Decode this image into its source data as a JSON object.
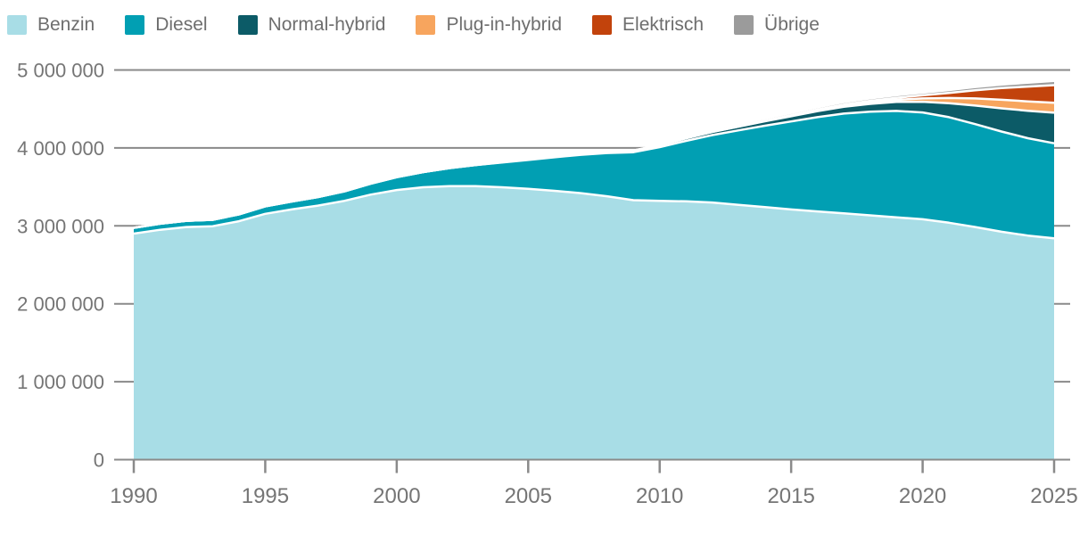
{
  "chart_data": {
    "type": "area",
    "stacked": true,
    "title": "",
    "xlabel": "",
    "ylabel": "",
    "grid": "horizontal",
    "legend_position": "top-left",
    "ylim": [
      0,
      5000000
    ],
    "x_range": [
      1990,
      2025
    ],
    "x": [
      1990,
      1991,
      1992,
      1993,
      1994,
      1995,
      1996,
      1997,
      1998,
      1999,
      2000,
      2001,
      2002,
      2003,
      2004,
      2005,
      2006,
      2007,
      2008,
      2009,
      2010,
      2011,
      2012,
      2013,
      2014,
      2015,
      2016,
      2017,
      2018,
      2019,
      2020,
      2021,
      2022,
      2023,
      2024,
      2025
    ],
    "xticks": [
      1990,
      1995,
      2000,
      2005,
      2010,
      2015,
      2020,
      2025
    ],
    "yticks": {
      "values": [
        0,
        1000000,
        2000000,
        3000000,
        4000000,
        5000000
      ],
      "labels": [
        "0",
        "1 000 000",
        "2 000 000",
        "3 000 000",
        "4 000 000",
        "5 000 000"
      ]
    },
    "series": [
      {
        "id": "benzin",
        "name": "Benzin",
        "color": "#a8dde6",
        "values": [
          2900000,
          2950000,
          2985000,
          2995000,
          3060000,
          3155000,
          3210000,
          3260000,
          3320000,
          3400000,
          3460000,
          3495000,
          3510000,
          3510000,
          3495000,
          3475000,
          3450000,
          3420000,
          3380000,
          3330000,
          3320000,
          3315000,
          3300000,
          3270000,
          3240000,
          3210000,
          3185000,
          3160000,
          3135000,
          3110000,
          3085000,
          3040000,
          2985000,
          2925000,
          2875000,
          2840000
        ]
      },
      {
        "id": "diesel",
        "name": "Diesel",
        "color": "#019fb3",
        "values": [
          75000,
          78000,
          80000,
          83000,
          88000,
          95000,
          102000,
          110000,
          122000,
          140000,
          165000,
          195000,
          230000,
          270000,
          318000,
          370000,
          430000,
          492000,
          555000,
          615000,
          690000,
          775000,
          865000,
          955000,
          1045000,
          1130000,
          1210000,
          1280000,
          1330000,
          1365000,
          1370000,
          1355000,
          1320000,
          1285000,
          1250000,
          1220000
        ]
      },
      {
        "id": "normal-hybrid",
        "name": "Normal-hybrid",
        "color": "#0c5b67",
        "values": [
          0,
          0,
          0,
          0,
          0,
          0,
          0,
          0,
          0,
          0,
          0,
          0,
          1000,
          2000,
          4000,
          6000,
          8000,
          12000,
          16000,
          21000,
          27000,
          33000,
          40000,
          48000,
          57000,
          66000,
          76000,
          87000,
          100000,
          115000,
          138000,
          178000,
          238000,
          298000,
          352000,
          392000
        ]
      },
      {
        "id": "plug-in-hybrid",
        "name": "Plug-in-hybrid",
        "color": "#f7a55e",
        "values": [
          0,
          0,
          0,
          0,
          0,
          0,
          0,
          0,
          0,
          0,
          0,
          0,
          0,
          0,
          0,
          0,
          0,
          0,
          0,
          0,
          0,
          0,
          1000,
          2000,
          4000,
          7000,
          11000,
          15000,
          20000,
          27000,
          42000,
          68000,
          92000,
          110000,
          120000,
          128000
        ]
      },
      {
        "id": "elektrisch",
        "name": "Elektrisch",
        "color": "#c2430c",
        "values": [
          0,
          0,
          0,
          0,
          0,
          0,
          0,
          0,
          0,
          0,
          0,
          0,
          0,
          0,
          0,
          0,
          0,
          0,
          0,
          0,
          0,
          0,
          2000,
          3000,
          5000,
          7000,
          10000,
          14000,
          19000,
          26000,
          40000,
          65000,
          105000,
          150000,
          190000,
          225000
        ]
      },
      {
        "id": "uebrige",
        "name": "Übrige",
        "color": "#9b9b9b",
        "values": [
          10000,
          10000,
          10000,
          10000,
          10000,
          10000,
          10000,
          10000,
          10000,
          10000,
          10000,
          10000,
          10000,
          10000,
          10000,
          10000,
          10000,
          10000,
          10000,
          10000,
          11000,
          11000,
          12000,
          12000,
          13000,
          14000,
          15000,
          16000,
          17000,
          18000,
          20000,
          23000,
          27000,
          31000,
          36000,
          40000
        ]
      }
    ],
    "colors": {
      "grid": "#8a8a8a",
      "axis_text": "#757575",
      "legend_text": "#6e6e6e",
      "separator": "#ffffff",
      "background": "#ffffff"
    }
  }
}
